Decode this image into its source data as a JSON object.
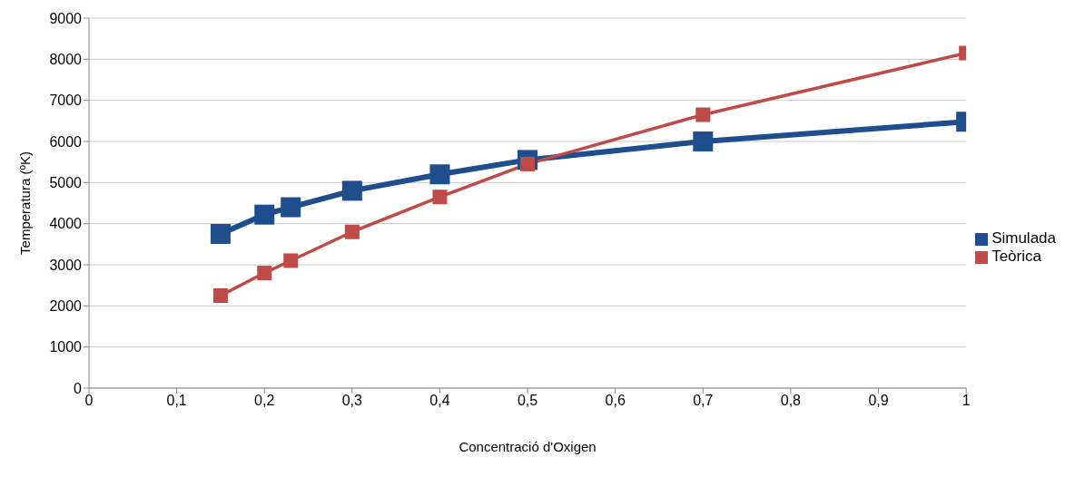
{
  "chart_data": {
    "type": "line",
    "xlabel": "Concentració d'Oxigen",
    "ylabel": "Temperatura (ºK)",
    "x": [
      0.15,
      0.2,
      0.23,
      0.3,
      0.4,
      0.5,
      0.7,
      1
    ],
    "series": [
      {
        "name": "Simulada",
        "color": "#1f4e8c",
        "values": [
          3750,
          4220,
          4400,
          4800,
          5200,
          5550,
          6000,
          6480
        ]
      },
      {
        "name": "Teòrica",
        "color": "#be4b48",
        "values": [
          2250,
          2800,
          3100,
          3800,
          4650,
          5450,
          6650,
          8150
        ]
      }
    ],
    "xlim": [
      0,
      1
    ],
    "xticks": [
      0,
      {
        "value": 0.1,
        "label": "0,1"
      },
      {
        "value": 0.2,
        "label": "0,2"
      },
      {
        "value": 0.3,
        "label": "0,3"
      },
      {
        "value": 0.4,
        "label": "0,4"
      },
      {
        "value": 0.5,
        "label": "0,5"
      },
      {
        "value": 0.6,
        "label": "0,6"
      },
      {
        "value": 0.7,
        "label": "0,7"
      },
      {
        "value": 0.8,
        "label": "0,8"
      },
      {
        "value": 0.9,
        "label": "0,9"
      },
      1
    ],
    "ylim": [
      0,
      9000
    ],
    "yticks": [
      0,
      1000,
      2000,
      3000,
      4000,
      5000,
      6000,
      7000,
      8000,
      9000
    ],
    "grid": "y",
    "legend": "right",
    "marker": "square",
    "line_style": "solid"
  }
}
